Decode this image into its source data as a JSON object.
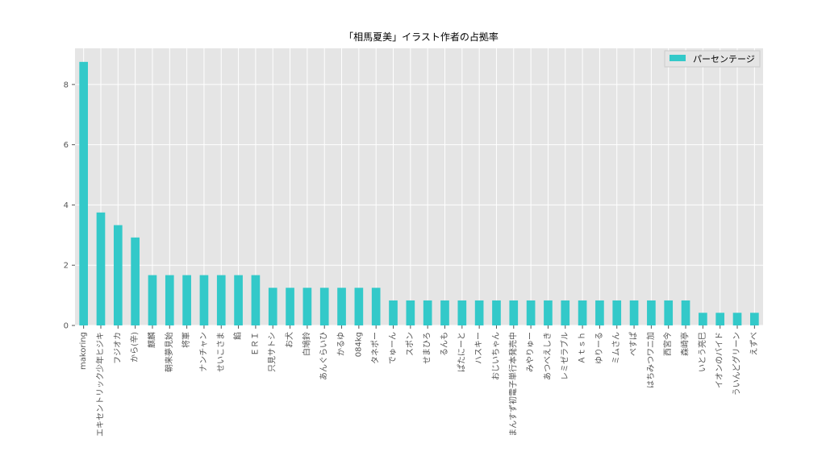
{
  "chart_data": {
    "type": "bar",
    "title": "「相馬夏美」イラスト作者の占拠率",
    "xlabel": "",
    "ylabel": "",
    "ylim": [
      0,
      9.2
    ],
    "yticks": [
      0,
      2,
      4,
      6,
      8
    ],
    "grid": true,
    "legend_position": "top-right",
    "bar_color": "#33c9c9",
    "background_color": "#e5e5e5",
    "categories": [
      "makoring",
      "エキセントリック少年ヒジキ",
      "フジオカ",
      "から(辛)",
      "麒麟",
      "朝来夢見始",
      "将軍",
      "ナンチャン",
      "せいこさま",
      "餡",
      "ＥＲＩ",
      "只見サトシ",
      "お犬",
      "白鳩鈴",
      "あんぐらいひ",
      "かるゆ",
      "084kg",
      "タネポー",
      "でゅーん",
      "スポン",
      "せまひろ",
      "るんも",
      "ぱたにーと",
      "ハスキー",
      "おじいちゃん",
      "まんすず初電子単行本発売中",
      "みやりゅー",
      "あつべえしき",
      "レミゼラブル",
      "Ａｔｓｈ",
      "ゆりーる",
      "ミムさん",
      "ぺすぱ",
      "はちみつワニ加",
      "西宮今",
      "森崎亭",
      "いとう亮巳",
      "イオンのバイド",
      "ういんどグリーン",
      "えずべ"
    ],
    "series": [
      {
        "name": "パーセンテージ",
        "values": [
          8.75,
          3.75,
          3.33,
          2.92,
          1.67,
          1.67,
          1.67,
          1.67,
          1.67,
          1.67,
          1.67,
          1.25,
          1.25,
          1.25,
          1.25,
          1.25,
          1.25,
          1.25,
          0.83,
          0.83,
          0.83,
          0.83,
          0.83,
          0.83,
          0.83,
          0.83,
          0.83,
          0.83,
          0.83,
          0.83,
          0.83,
          0.83,
          0.83,
          0.83,
          0.83,
          0.83,
          0.42,
          0.42,
          0.42,
          0.42
        ]
      }
    ]
  }
}
